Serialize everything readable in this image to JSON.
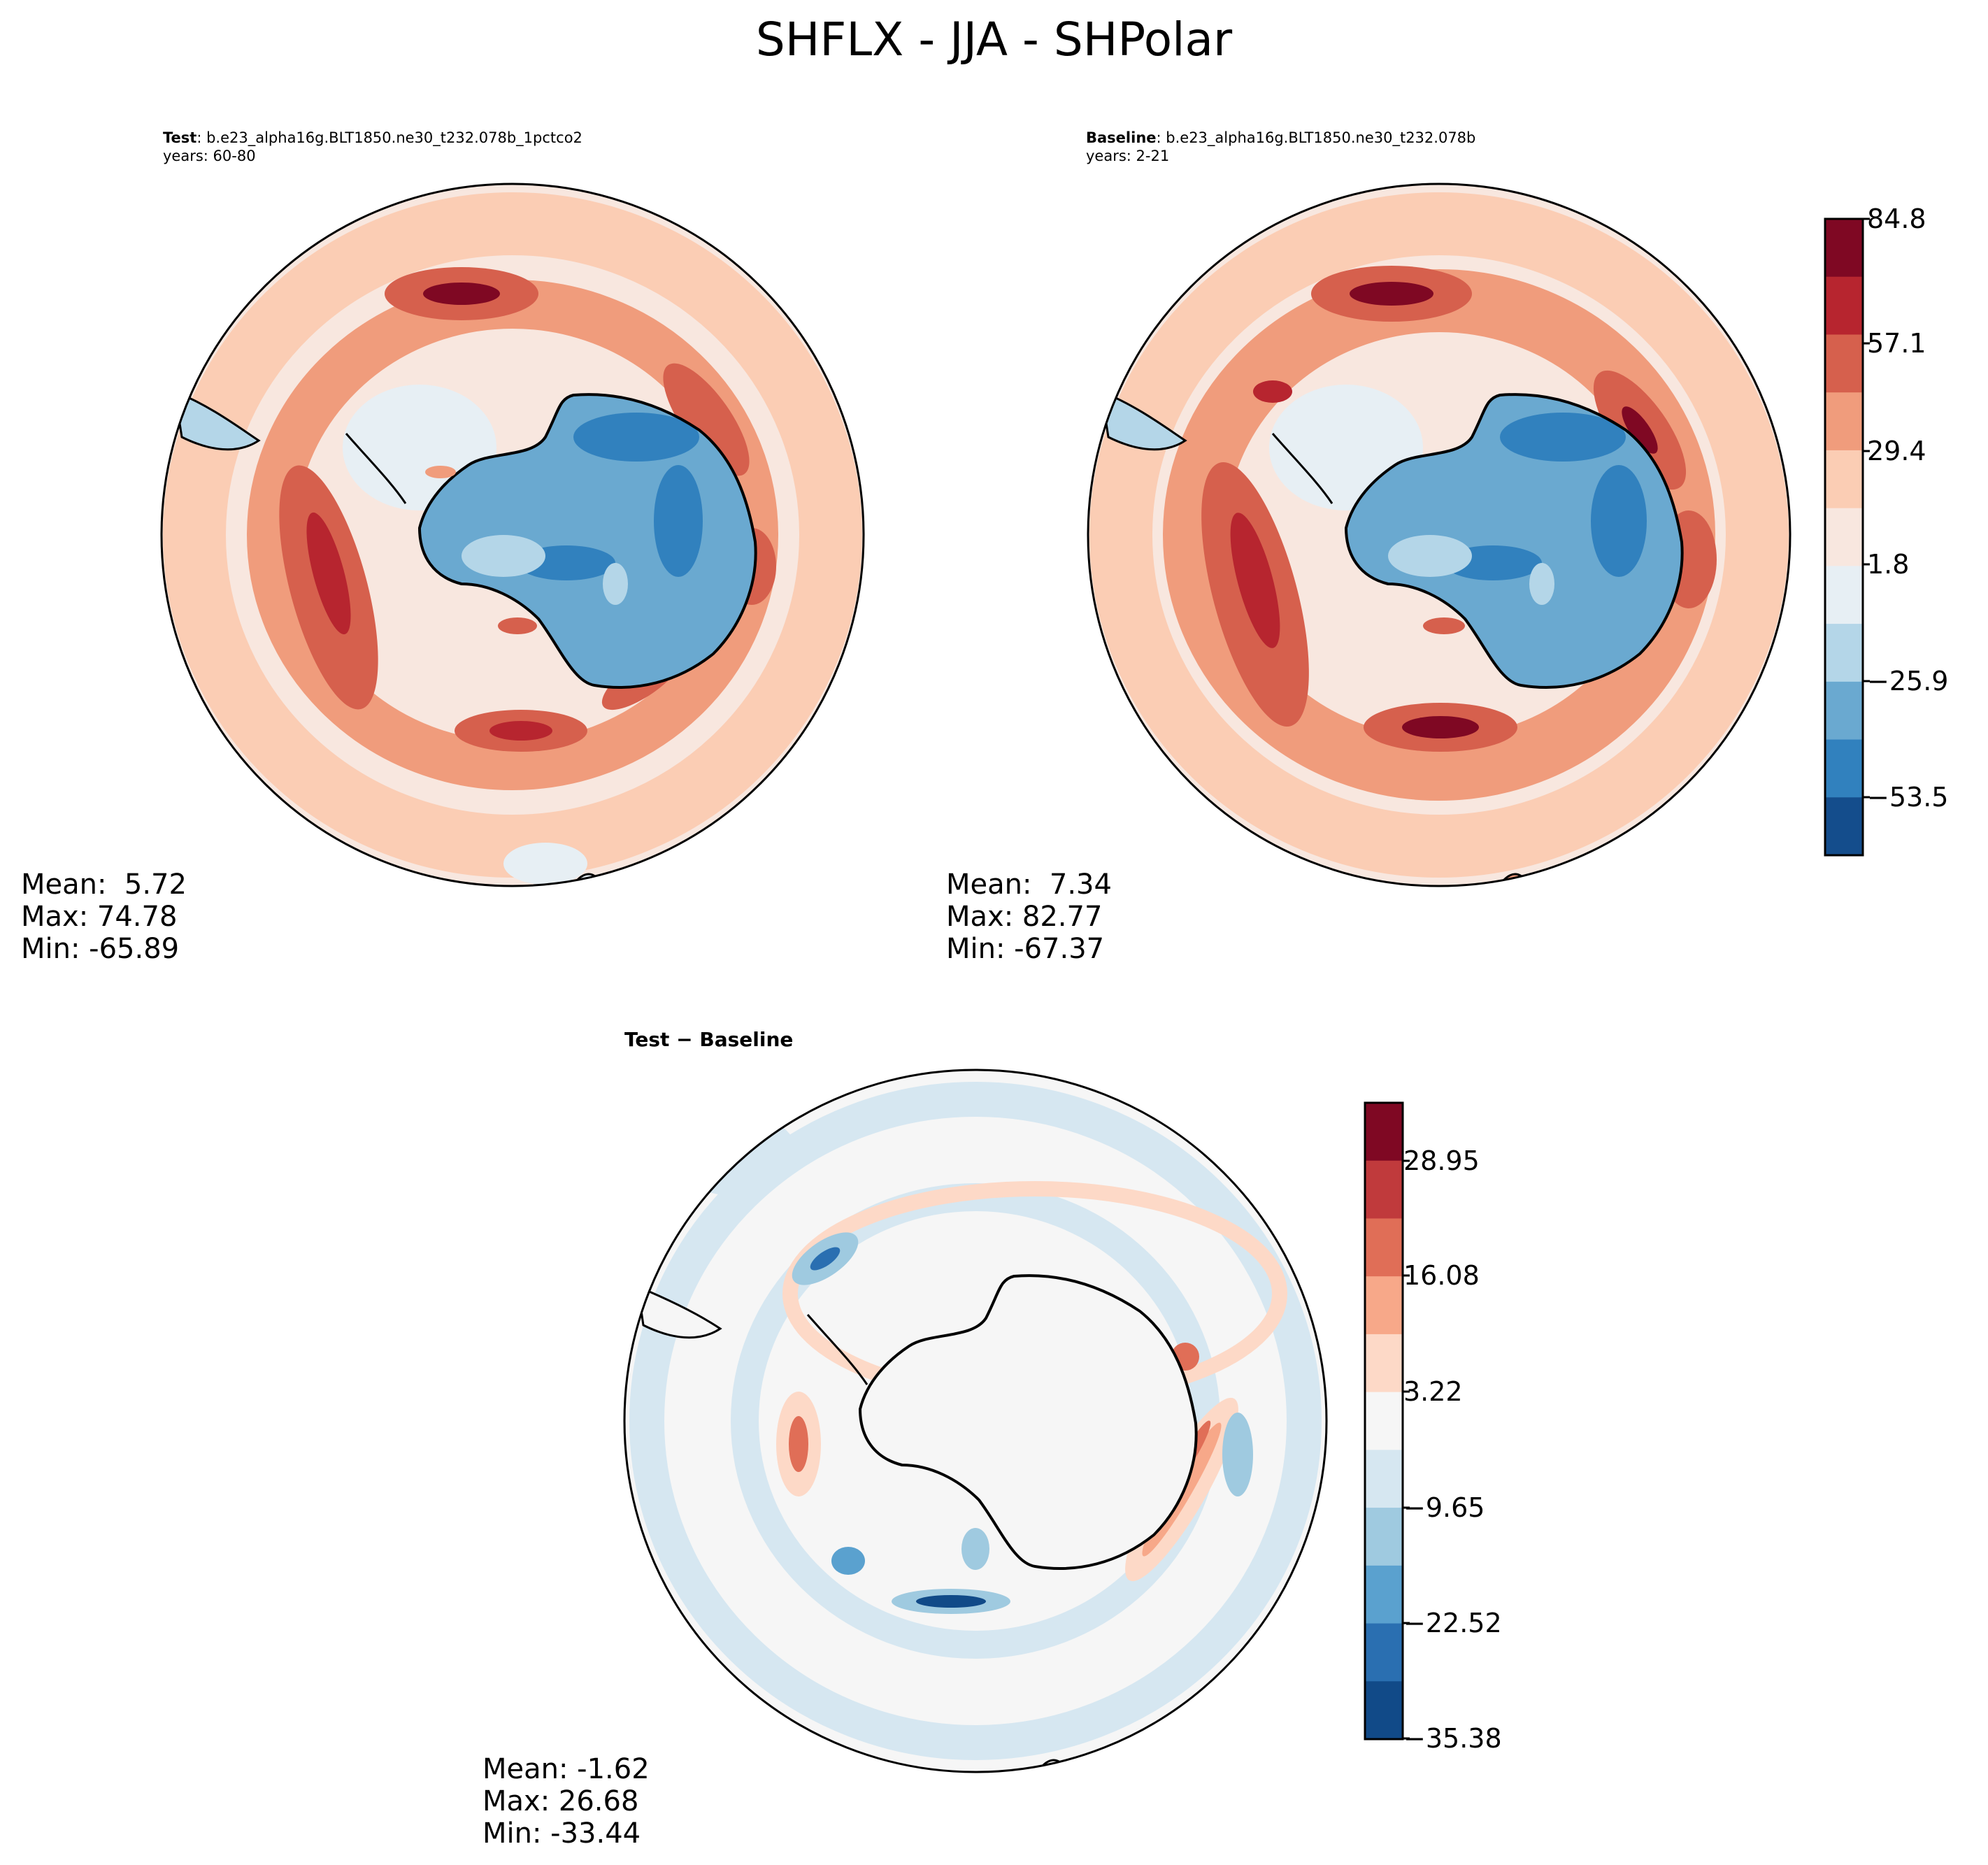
{
  "figure": {
    "title": "SHFLX - JJA - SHPolar"
  },
  "panels": {
    "test": {
      "label_bold": "Test",
      "label_rest": ": b.e23_alpha16g.BLT1850.ne30_t232.078b_1pctco2",
      "years": "years: 60-80",
      "stats": {
        "mean": "Mean:  5.72",
        "max": "Max: 74.78",
        "min": "Min: -65.89"
      }
    },
    "baseline": {
      "label_bold": "Baseline",
      "label_rest": ": b.e23_alpha16g.BLT1850.ne30_t232.078b",
      "years": "years: 2-21",
      "stats": {
        "mean": "Mean:  7.34",
        "max": "Max: 82.77",
        "min": "Min: -67.37"
      }
    },
    "difference": {
      "label": "Test − Baseline",
      "stats": {
        "mean": "Mean: -1.62",
        "max": "Max: 26.68",
        "min": "Min: -33.44"
      }
    }
  },
  "colorbars": {
    "main": {
      "ticks": [
        "84.8",
        "57.1",
        "29.4",
        "1.8",
        "−25.9",
        "−53.5"
      ],
      "colors_top_to_bottom": [
        "#7f0823",
        "#b7252f",
        "#d6604d",
        "#f09c7c",
        "#fbcdb4",
        "#f8e7df",
        "#e7eff4",
        "#b4d6e8",
        "#6aa9d0",
        "#3181be",
        "#144d8c"
      ]
    },
    "diff": {
      "ticks": [
        "28.95",
        "16.08",
        "3.22",
        "−9.65",
        "−22.52",
        "−35.38"
      ],
      "colors_top_to_bottom": [
        "#7f0823",
        "#c03a3c",
        "#e06e57",
        "#f7a889",
        "#fdd9c7",
        "#f6f6f6",
        "#d6e7f1",
        "#9fcae0",
        "#5aa1cf",
        "#2a6fb1",
        "#114a88"
      ]
    }
  },
  "chart_data": [
    {
      "type": "heatmap",
      "title": "Test: b.e23_alpha16g.BLT1850.ne30_t232.078b_1pctco2, years: 60-80",
      "projection": "south polar stereographic",
      "variable": "SHFLX",
      "season": "JJA",
      "stats": {
        "mean": 5.72,
        "max": 74.78,
        "min": -65.89
      },
      "levels": [
        -67.37,
        -53.5,
        -39.7,
        -25.9,
        -12.0,
        1.8,
        15.6,
        29.4,
        43.2,
        57.1,
        70.9,
        84.8
      ]
    },
    {
      "type": "heatmap",
      "title": "Baseline: b.e23_alpha16g.BLT1850.ne30_t232.078b, years: 2-21",
      "projection": "south polar stereographic",
      "variable": "SHFLX",
      "season": "JJA",
      "stats": {
        "mean": 7.34,
        "max": 82.77,
        "min": -67.37
      },
      "levels": [
        -67.37,
        -53.5,
        -39.7,
        -25.9,
        -12.0,
        1.8,
        15.6,
        29.4,
        43.2,
        57.1,
        70.9,
        84.8
      ]
    },
    {
      "type": "heatmap",
      "title": "Test − Baseline",
      "projection": "south polar stereographic",
      "variable": "SHFLX",
      "season": "JJA",
      "stats": {
        "mean": -1.62,
        "max": 26.68,
        "min": -33.44
      },
      "levels": [
        -35.38,
        -22.52,
        -9.65,
        3.22,
        16.08,
        28.95
      ]
    }
  ]
}
